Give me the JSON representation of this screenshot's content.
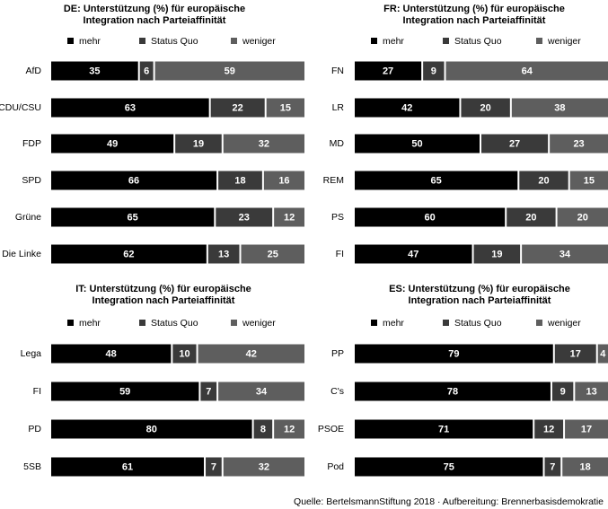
{
  "colors": {
    "mehr": "#000000",
    "status_quo": "#3a3a3a",
    "weniger": "#5e5e5e",
    "label": "#ffffff"
  },
  "legend": [
    {
      "key": "mehr",
      "label": "mehr"
    },
    {
      "key": "status_quo",
      "label": "Status Quo"
    },
    {
      "key": "weniger",
      "label": "weniger"
    }
  ],
  "source": "Quelle: BertelsmannStiftung 2018 · Aufbereitung: Brennerbasisdemokratie",
  "chart_data": [
    {
      "type": "bar",
      "stacked": true,
      "orientation": "horizontal",
      "title_line1": "DE: Unterstützung (%) für europäische",
      "title_line2": "Integration nach Parteiaffinität",
      "xlim": [
        0,
        100
      ],
      "categories": [
        "AfD",
        "CDU/CSU",
        "FDP",
        "SPD",
        "Grüne",
        "Die Linke"
      ],
      "series": [
        {
          "name": "mehr",
          "values": [
            35,
            63,
            49,
            66,
            65,
            62
          ]
        },
        {
          "name": "Status Quo",
          "values": [
            6,
            22,
            19,
            18,
            23,
            13
          ]
        },
        {
          "name": "weniger",
          "values": [
            59,
            15,
            32,
            16,
            12,
            25
          ]
        }
      ]
    },
    {
      "type": "bar",
      "stacked": true,
      "orientation": "horizontal",
      "title_line1": "FR: Unterstützung (%) für europäische",
      "title_line2": "Integration nach Parteiaffinität",
      "xlim": [
        0,
        100
      ],
      "categories": [
        "FN",
        "LR",
        "MD",
        "REM",
        "PS",
        "FI"
      ],
      "series": [
        {
          "name": "mehr",
          "values": [
            27,
            42,
            50,
            65,
            60,
            47
          ]
        },
        {
          "name": "Status Quo",
          "values": [
            9,
            20,
            27,
            20,
            20,
            19
          ]
        },
        {
          "name": "weniger",
          "values": [
            64,
            38,
            23,
            15,
            20,
            34
          ]
        }
      ]
    },
    {
      "type": "bar",
      "stacked": true,
      "orientation": "horizontal",
      "title_line1": "IT: Unterstützung (%) für europäische",
      "title_line2": "Integration nach Parteiaffinität",
      "xlim": [
        0,
        100
      ],
      "categories": [
        "Lega",
        "FI",
        "PD",
        "5SB"
      ],
      "series": [
        {
          "name": "mehr",
          "values": [
            48,
            59,
            80,
            61
          ]
        },
        {
          "name": "Status Quo",
          "values": [
            10,
            7,
            8,
            7
          ]
        },
        {
          "name": "weniger",
          "values": [
            42,
            34,
            12,
            32
          ]
        }
      ]
    },
    {
      "type": "bar",
      "stacked": true,
      "orientation": "horizontal",
      "title_line1": "ES: Unterstützung (%) für europäische",
      "title_line2": "Integration nach Parteiaffinität",
      "xlim": [
        0,
        100
      ],
      "categories": [
        "PP",
        "C's",
        "PSOE",
        "Pod"
      ],
      "series": [
        {
          "name": "mehr",
          "values": [
            79,
            78,
            71,
            75
          ]
        },
        {
          "name": "Status Quo",
          "values": [
            17,
            9,
            12,
            7
          ]
        },
        {
          "name": "weniger",
          "values": [
            4,
            13,
            17,
            18
          ]
        }
      ]
    }
  ]
}
